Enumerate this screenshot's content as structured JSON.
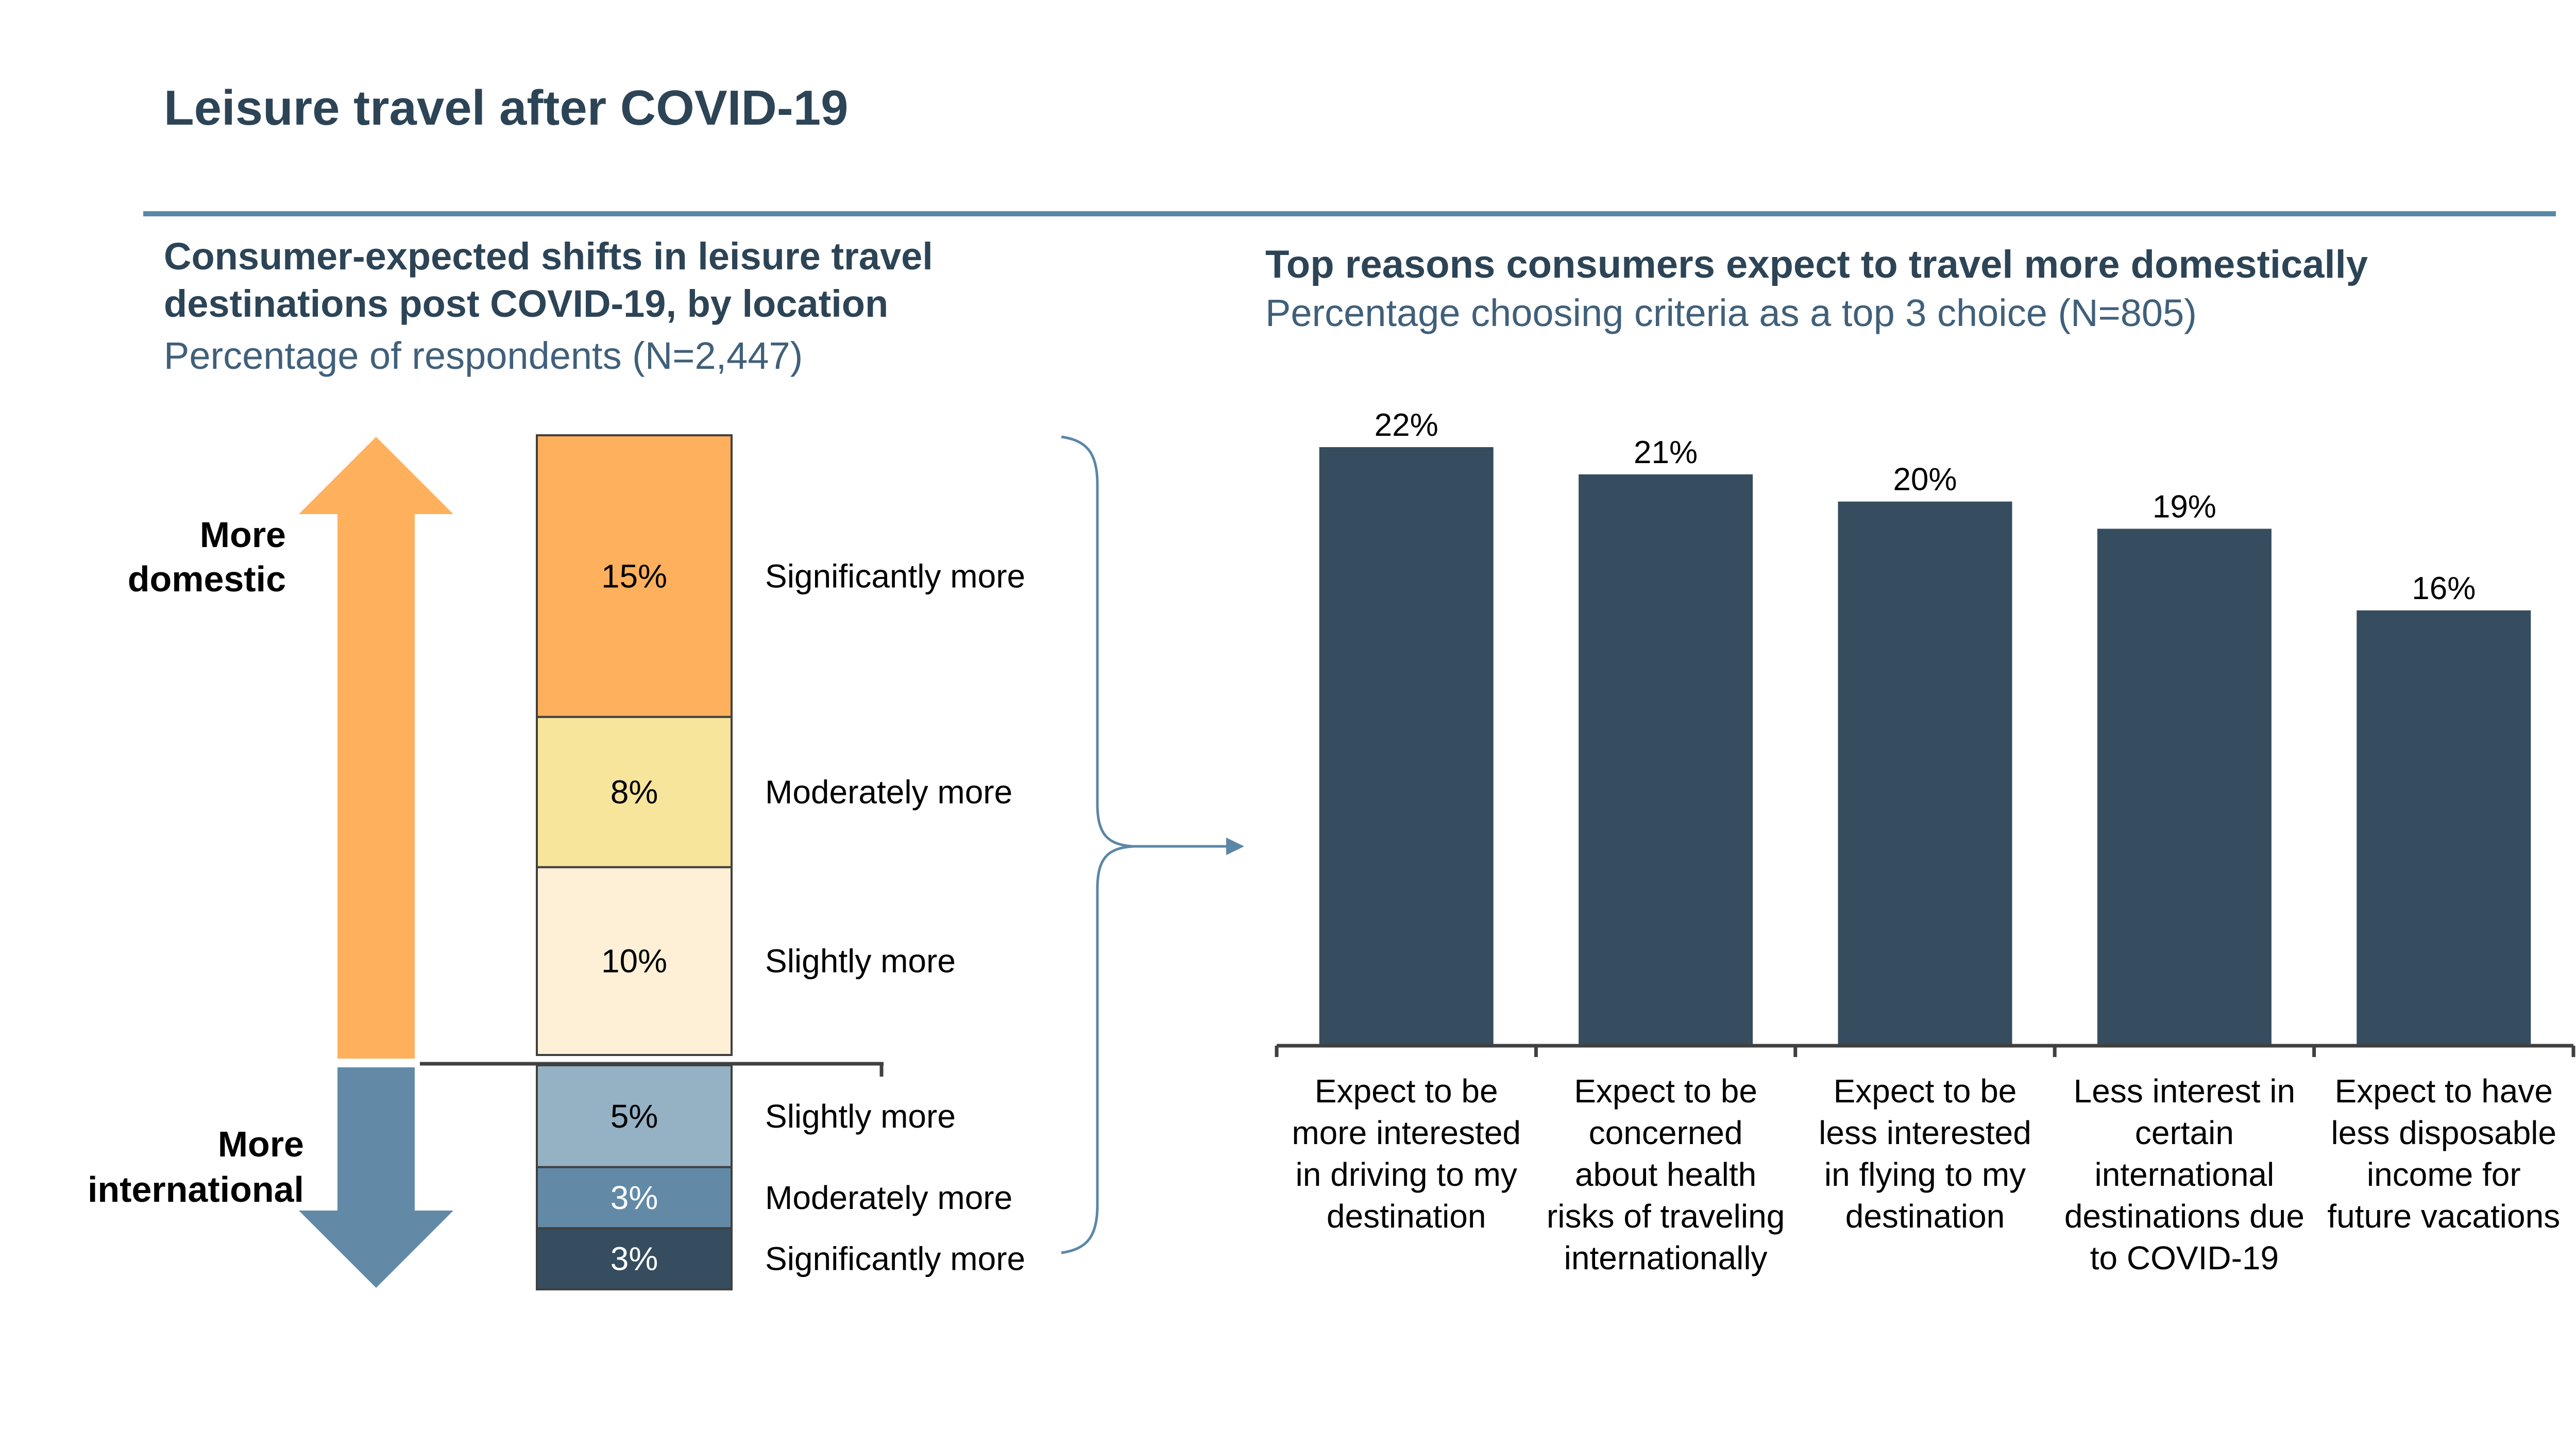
{
  "header": {
    "title": "Leisure travel after COVID-19"
  },
  "left_panel": {
    "title": "Consumer-expected shifts in leisure travel destinations post COVID-19, by location",
    "subtitle": "Percentage of respondents (N=2,447)",
    "arrow_domestic_label": [
      "More",
      "domestic"
    ],
    "arrow_international_label": [
      "More",
      "international"
    ]
  },
  "right_panel": {
    "title": "Top reasons consumers expect to travel more domestically",
    "subtitle": "Percentage choosing criteria as a top 3 choice (N=805)"
  },
  "colors": {
    "title": "#2c4456",
    "rule": "#5b87a6",
    "domestic_arrow": "#ffb05c",
    "international_arrow": "#628aa6",
    "bar": "#354d5e"
  },
  "chart_data": [
    {
      "type": "bar",
      "stacked": true,
      "title": "Consumer-expected shifts in leisure travel destinations post COVID-19, by location",
      "segments": [
        {
          "group": "More domestic",
          "label": "Significantly more",
          "value": 15,
          "value_label": "15%",
          "color": "#ffb05c"
        },
        {
          "group": "More domestic",
          "label": "Moderately more",
          "value": 8,
          "value_label": "8%",
          "color": "#f7e59b"
        },
        {
          "group": "More domestic",
          "label": "Slightly more",
          "value": 10,
          "value_label": "10%",
          "color": "#fdf0d6"
        },
        {
          "group": "More international",
          "label": "Slightly more",
          "value": 5,
          "value_label": "5%",
          "color": "#95b1c4"
        },
        {
          "group": "More international",
          "label": "Moderately more",
          "value": 3,
          "value_label": "3%",
          "color": "#628aa6"
        },
        {
          "group": "More international",
          "label": "Significantly more",
          "value": 3,
          "value_label": "3%",
          "color": "#354d5e"
        }
      ]
    },
    {
      "type": "bar",
      "title": "Top reasons consumers expect to travel more domestically",
      "categories": [
        [
          "Expect to be",
          "more interested",
          "in driving to my",
          "destination"
        ],
        [
          "Expect to be",
          "concerned",
          "about health",
          "risks of traveling",
          "internationally"
        ],
        [
          "Expect to be",
          "less interested",
          "in flying to my",
          "destination"
        ],
        [
          "Less interest in",
          "certain",
          "international",
          "destinations due",
          "to COVID-19"
        ],
        [
          "Expect to have",
          "less disposable",
          "income for",
          "future vacations"
        ]
      ],
      "values": [
        22,
        21,
        20,
        19,
        16
      ],
      "value_labels": [
        "22%",
        "21%",
        "20%",
        "19%",
        "16%"
      ],
      "ylim": [
        0,
        22
      ]
    }
  ]
}
